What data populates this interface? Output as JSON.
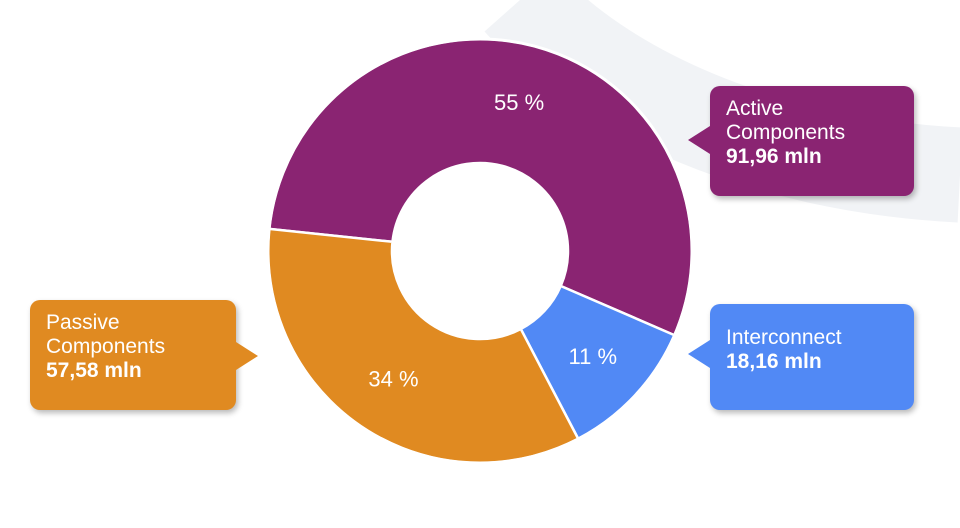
{
  "chart_data": {
    "type": "pie",
    "donut": true,
    "unit": "mln",
    "categories": [
      "Active Components",
      "Interconnect",
      "Passive Components"
    ],
    "values": [
      91.96,
      18.16,
      57.58
    ],
    "value_labels": [
      "91,96 mln",
      "18,16 mln",
      "57,58 mln"
    ],
    "percent_labels": [
      "55 %",
      "11 %",
      "34 %"
    ],
    "colors": [
      "#8a2472",
      "#5189f5",
      "#e08a21"
    ],
    "legend": "callouts"
  },
  "callouts": {
    "active": {
      "label_line1": "Active",
      "label_line2": "Components",
      "value": "91,96 mln",
      "color": "#8a2472"
    },
    "interconnect": {
      "label_line1": "Interconnect",
      "value": "18,16 mln",
      "color": "#5189f5"
    },
    "passive": {
      "label_line1": "Passive",
      "label_line2": "Components",
      "value": "57,58 mln",
      "color": "#e08a21"
    }
  }
}
